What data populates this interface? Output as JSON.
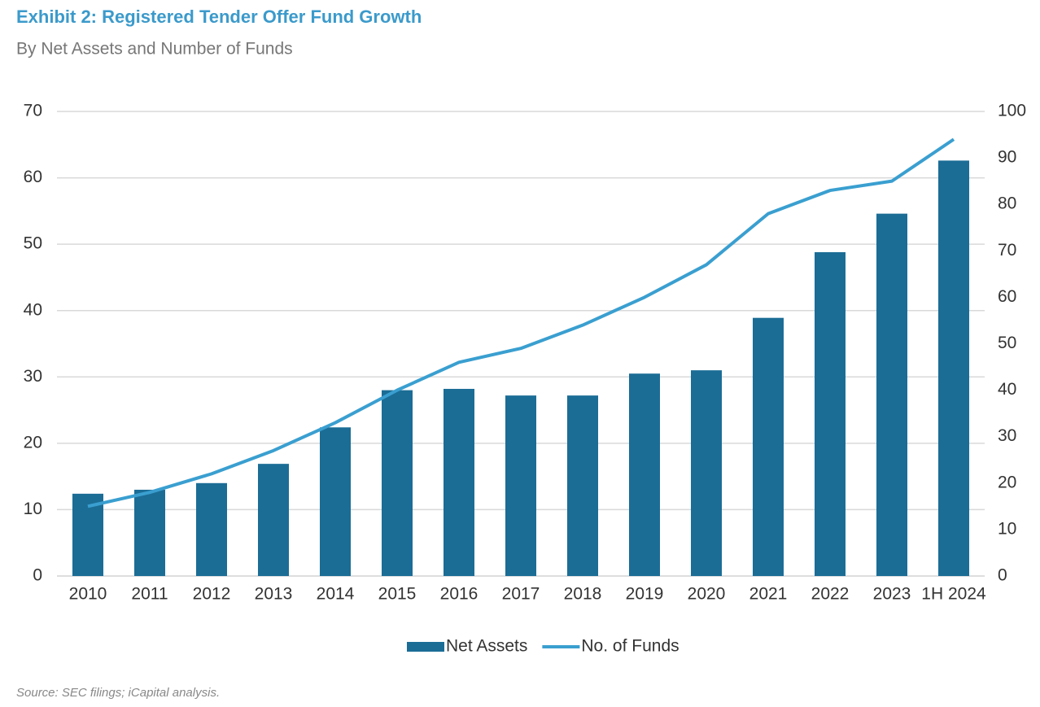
{
  "chart_data": {
    "type": "bar",
    "title": "Exhibit 2: Registered Tender Offer Fund Growth",
    "subtitle": "By Net Assets and Number of Funds",
    "source": "Source: SEC filings; iCapital analysis.",
    "categories": [
      "2010",
      "2011",
      "2012",
      "2013",
      "2014",
      "2015",
      "2016",
      "2017",
      "2018",
      "2019",
      "2020",
      "2021",
      "2022",
      "2023",
      "1H 2024"
    ],
    "series": [
      {
        "name": "Net Assets",
        "type": "bar",
        "color": "#1b6d96",
        "values": [
          12.4,
          13.0,
          14.0,
          16.9,
          22.4,
          28.0,
          28.2,
          27.2,
          27.2,
          30.5,
          31.0,
          38.9,
          48.8,
          54.6,
          62.6
        ]
      },
      {
        "name": "No. of Funds",
        "type": "line",
        "axis": "y2",
        "color": "#3a9fd0",
        "values": [
          15,
          18,
          22,
          27,
          33,
          40,
          46,
          49,
          54,
          60,
          67,
          78,
          83,
          85,
          94
        ]
      }
    ],
    "ylim": [
      0,
      70
    ],
    "yticks": [
      0,
      10,
      20,
      30,
      40,
      50,
      60,
      70
    ],
    "y2lim": [
      0,
      100
    ],
    "y2ticks": [
      0,
      10,
      20,
      30,
      40,
      50,
      60,
      70,
      80,
      90,
      100
    ],
    "grid": true,
    "legend": "bottom"
  }
}
